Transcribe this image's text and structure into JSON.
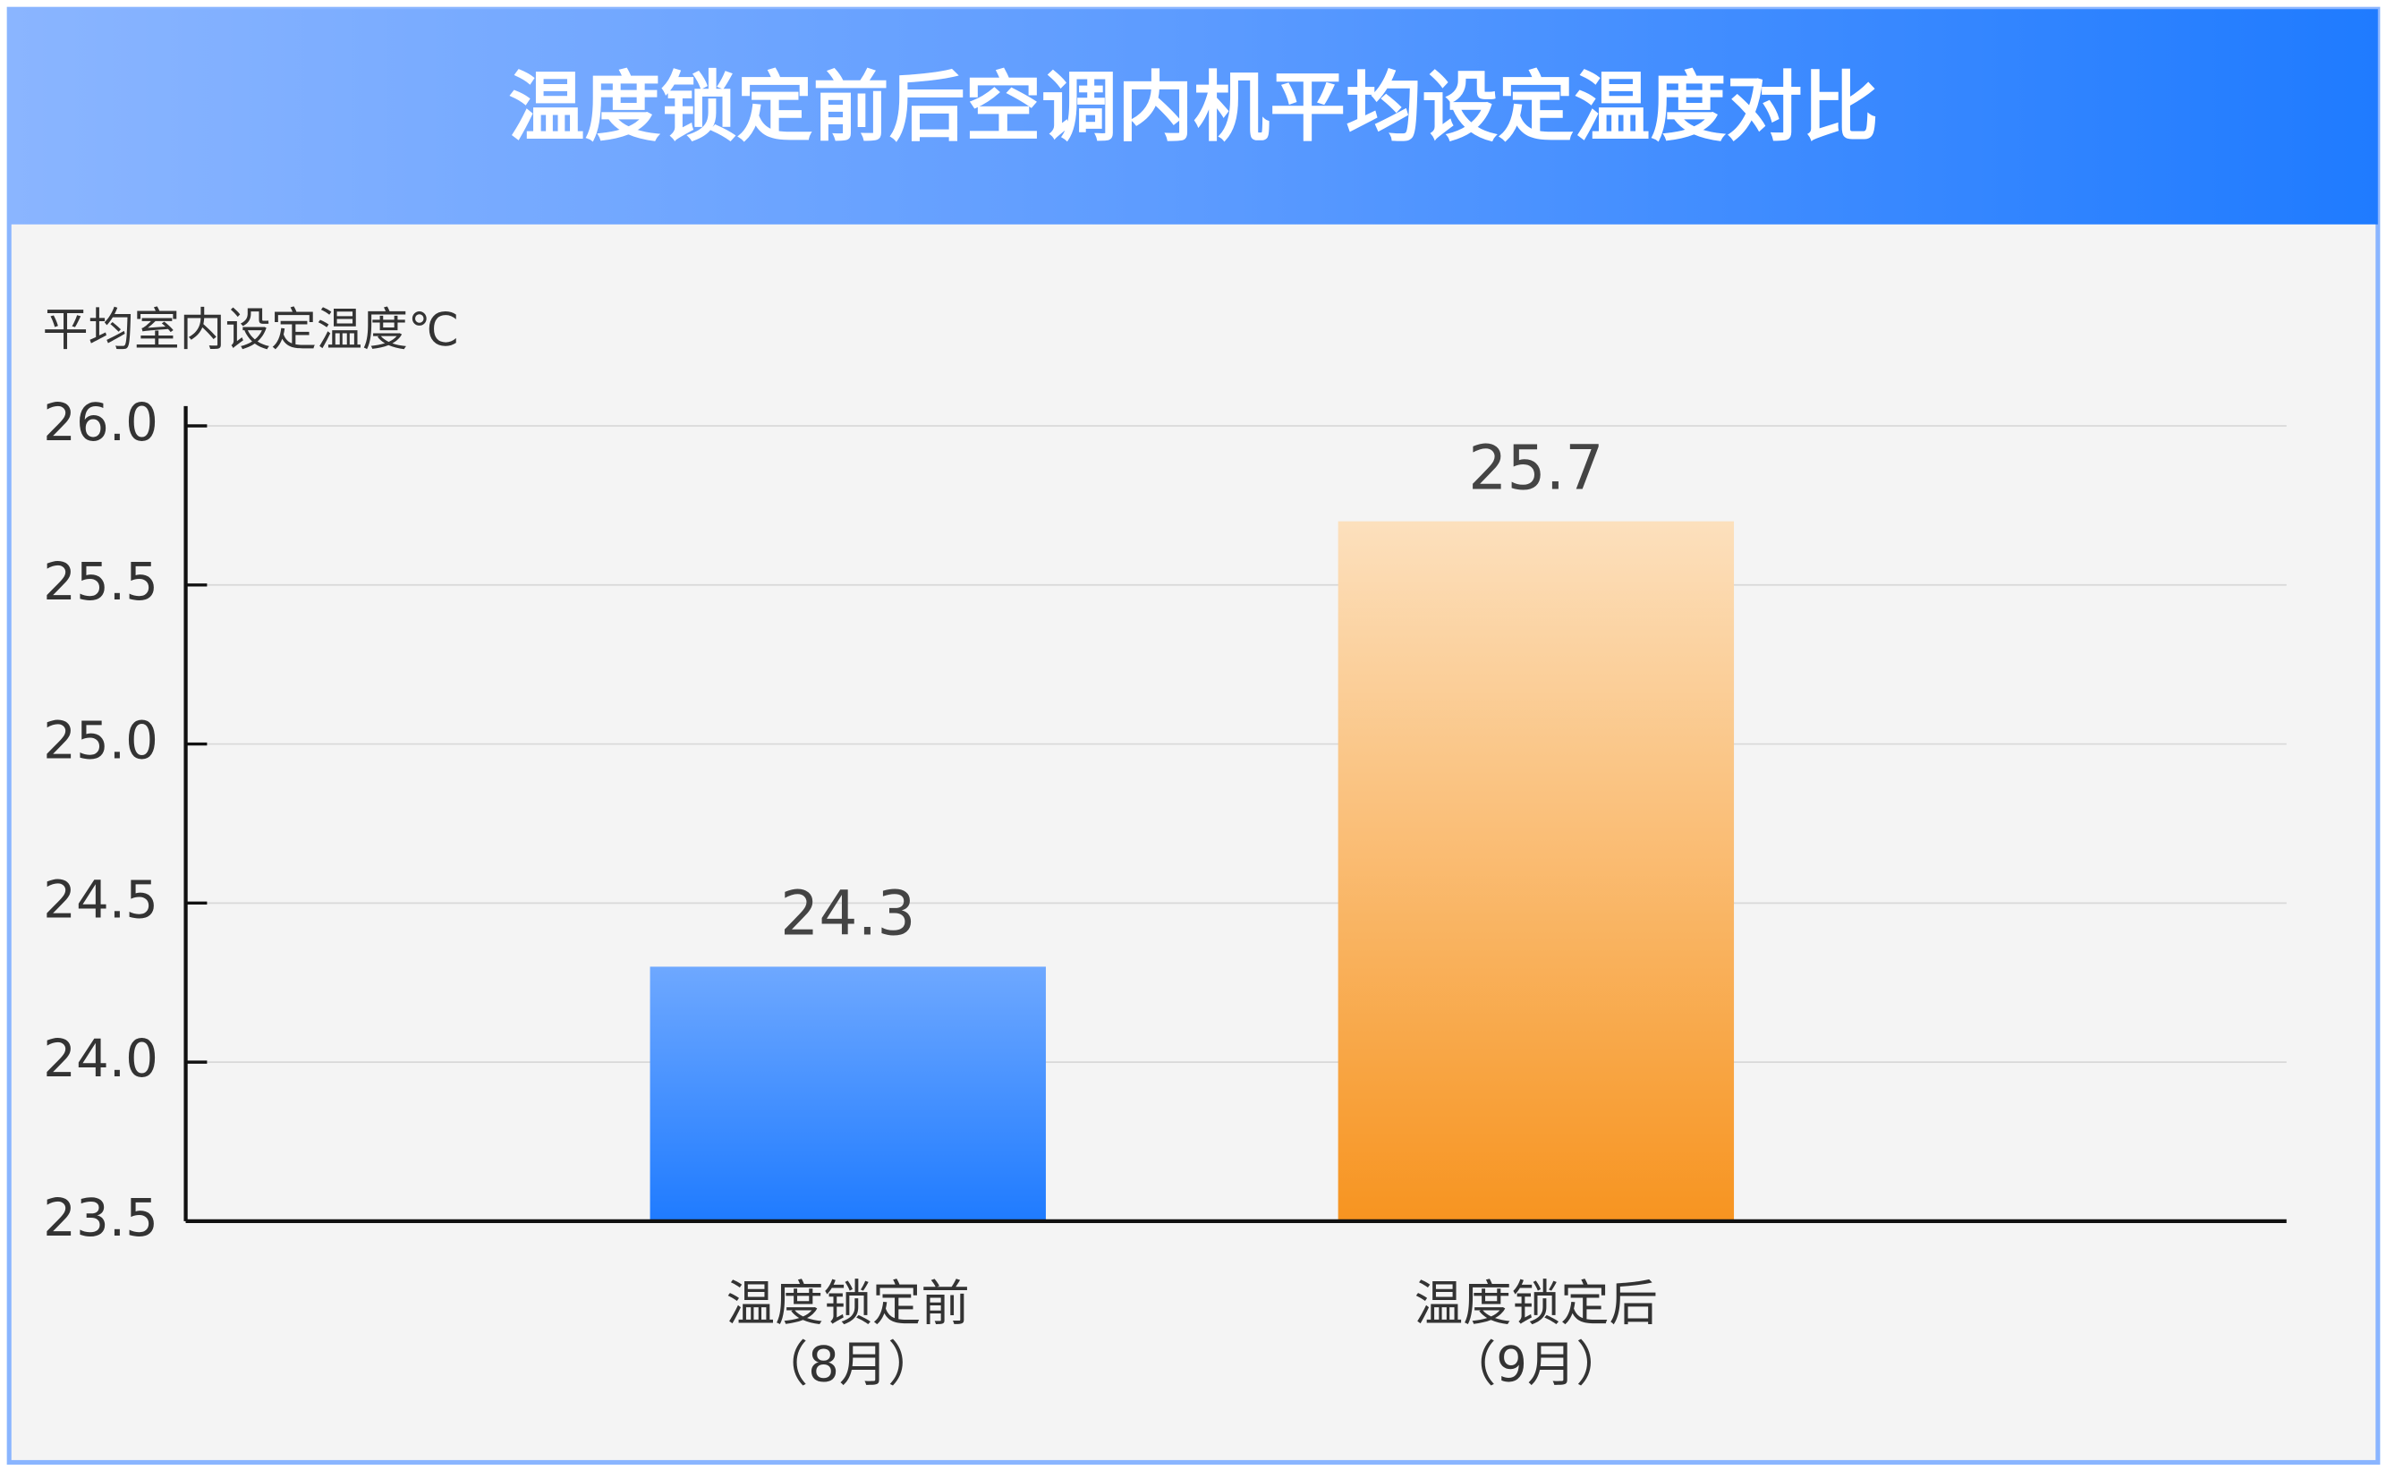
{
  "chart_data": {
    "type": "bar",
    "title": "温度锁定前后空调内机平均设定温度对比",
    "y_label": "平均室内设定温度℃",
    "categories": [
      "温度锁定前\n（8月）",
      "温度锁定后\n（9月）"
    ],
    "values": [
      24.3,
      25.7
    ],
    "colors": [
      [
        "#6ea8ff",
        "#1f7bff"
      ],
      [
        "#fce0bd",
        "#f79420"
      ]
    ],
    "ylim": [
      23.5,
      26.0
    ],
    "yticks": [
      {
        "value": 23.5,
        "label": "23.5"
      },
      {
        "value": 24,
        "label": "24.0"
      },
      {
        "value": 24.5,
        "label": "24.5"
      },
      {
        "value": 25,
        "label": "25.0"
      },
      {
        "value": 25.5,
        "label": "25.5"
      },
      {
        "value": 26,
        "label": "26.0"
      }
    ],
    "grid": true
  }
}
